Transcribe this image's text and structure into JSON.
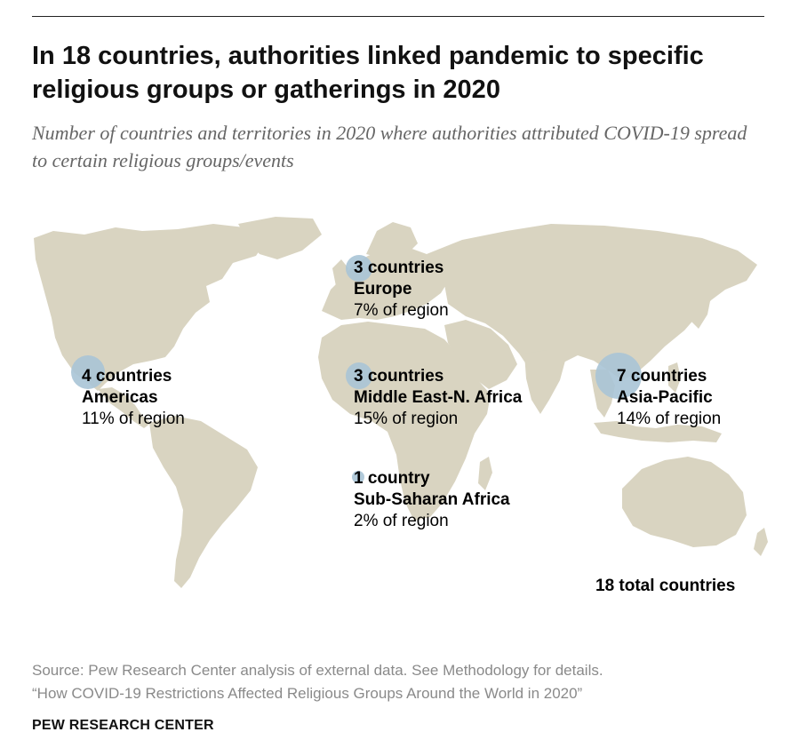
{
  "title": "In 18 countries, authorities linked pandemic to specific religious groups or gatherings in 2020",
  "subtitle": "Number of countries and territories in 2020 where authorities attributed COVID-19 spread to certain religious groups/events",
  "colors": {
    "land": "#d9d4c1",
    "bubble": "#a9c4d6",
    "source_text": "#8a8a8a"
  },
  "regions": [
    {
      "id": "americas",
      "count": "4 countries",
      "region": "Americas",
      "share": "11% of region",
      "countries": 4
    },
    {
      "id": "europe",
      "count": "3 countries",
      "region": "Europe",
      "share": "7% of region",
      "countries": 3
    },
    {
      "id": "mena",
      "count": "3 countries",
      "region": "Middle East-N. Africa",
      "share": "15% of region",
      "countries": 3
    },
    {
      "id": "ssa",
      "count": "1 country",
      "region": "Sub-Saharan Africa",
      "share": "2% of region",
      "countries": 1
    },
    {
      "id": "asia",
      "count": "7 countries",
      "region": "Asia-Pacific",
      "share": "14% of region",
      "countries": 7
    }
  ],
  "total": "18 total countries",
  "source_line1": "Source: Pew Research Center analysis of external data. See Methodology for details.",
  "source_line2": "“How COVID-19 Restrictions Affected Religious Groups Around the World in 2020”",
  "footer": "PEW RESEARCH CENTER"
}
